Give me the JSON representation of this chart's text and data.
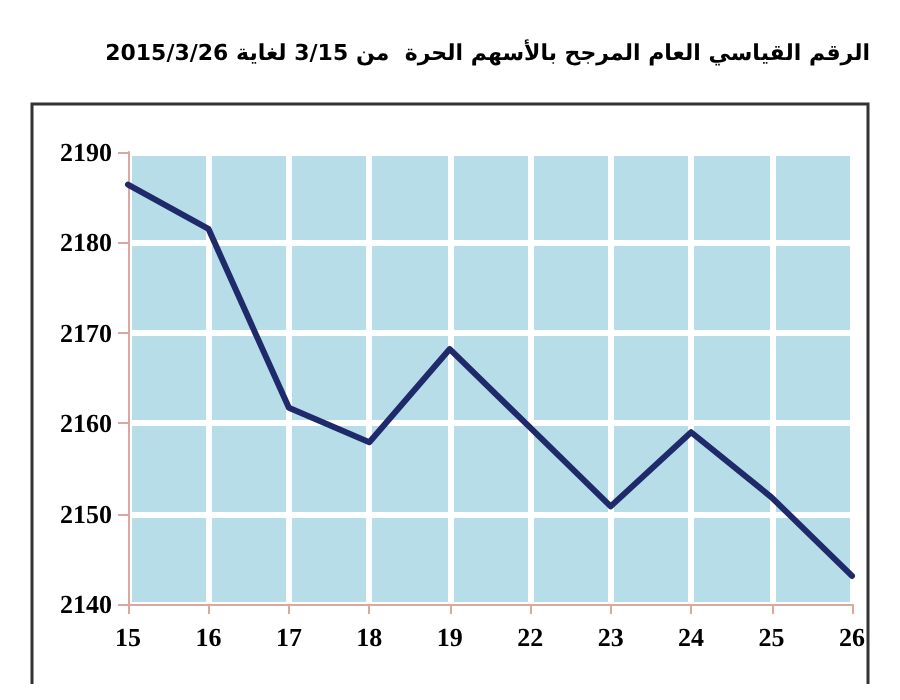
{
  "chart_data": {
    "type": "line",
    "title": "الرقم القياسي العام المرجح بالأسهم الحرة  من 3/15 لغاية 2015/3/26",
    "categories": [
      "15",
      "16",
      "17",
      "18",
      "19",
      "22",
      "23",
      "24",
      "25",
      "26"
    ],
    "series": [
      {
        "color": "#1f2a6b",
        "values": [
          2186.4,
          2181.5,
          2161.7,
          2157.9,
          2168.2,
          2159.5,
          2150.8,
          2159,
          2151.8,
          2143.1
        ]
      }
    ],
    "ylim": [
      2140,
      2190
    ],
    "yticks": [
      2140,
      2150,
      2160,
      2170,
      2180,
      2190
    ],
    "grid": true,
    "marker": "none",
    "line_style": "solid"
  }
}
